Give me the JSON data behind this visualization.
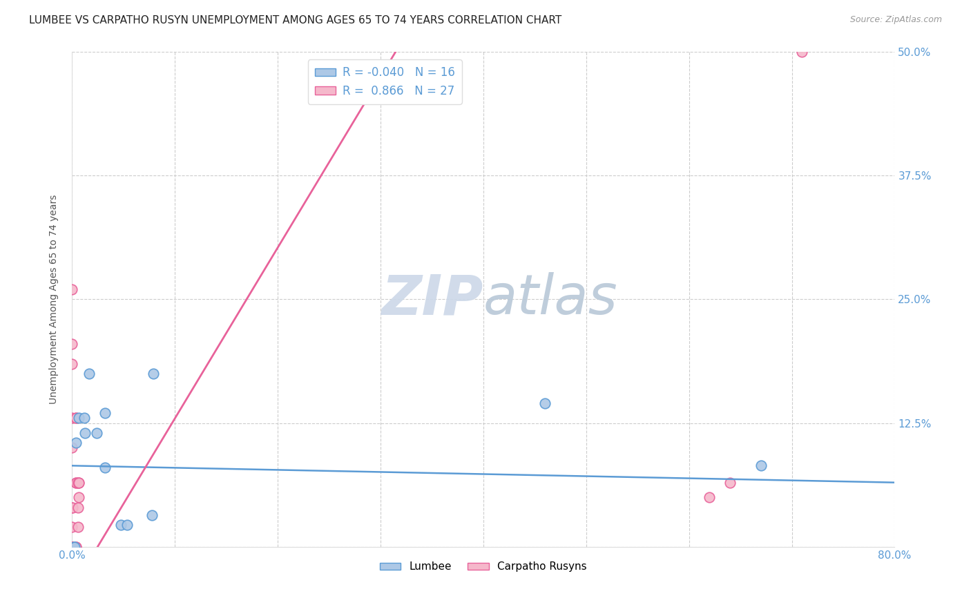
{
  "title": "LUMBEE VS CARPATHO RUSYN UNEMPLOYMENT AMONG AGES 65 TO 74 YEARS CORRELATION CHART",
  "source": "Source: ZipAtlas.com",
  "ylabel": "Unemployment Among Ages 65 to 74 years",
  "xlim": [
    0,
    0.8
  ],
  "ylim": [
    0,
    0.5
  ],
  "xticks": [
    0.0,
    0.1,
    0.2,
    0.3,
    0.4,
    0.5,
    0.6,
    0.7,
    0.8
  ],
  "yticks": [
    0.0,
    0.125,
    0.25,
    0.375,
    0.5
  ],
  "yticklabels_right": [
    "",
    "12.5%",
    "25.0%",
    "37.5%",
    "50.0%"
  ],
  "lumbee_x": [
    0.002,
    0.003,
    0.004,
    0.007,
    0.012,
    0.013,
    0.017,
    0.024,
    0.032,
    0.032,
    0.048,
    0.054,
    0.078,
    0.079,
    0.46,
    0.67
  ],
  "lumbee_y": [
    0.0,
    0.0,
    0.105,
    0.13,
    0.13,
    0.115,
    0.175,
    0.115,
    0.135,
    0.08,
    0.022,
    0.022,
    0.032,
    0.175,
    0.145,
    0.082
  ],
  "carpatho_x": [
    0.0,
    0.0,
    0.0,
    0.0,
    0.0,
    0.0,
    0.0,
    0.0,
    0.0,
    0.0,
    0.001,
    0.001,
    0.004,
    0.004,
    0.004,
    0.004,
    0.004,
    0.004,
    0.006,
    0.006,
    0.006,
    0.007,
    0.007,
    0.007,
    0.62,
    0.64,
    0.71
  ],
  "carpatho_y": [
    0.0,
    0.0,
    0.0,
    0.02,
    0.04,
    0.1,
    0.13,
    0.185,
    0.205,
    0.26,
    0.0,
    0.04,
    0.0,
    0.0,
    0.065,
    0.065,
    0.13,
    0.13,
    0.02,
    0.04,
    0.065,
    0.05,
    0.065,
    0.065,
    0.05,
    0.065,
    0.5
  ],
  "lumbee_r": -0.04,
  "lumbee_n": 16,
  "carpatho_r": 0.866,
  "carpatho_n": 27,
  "lumbee_color": "#adc8e6",
  "carpatho_color": "#f5b8cb",
  "lumbee_line_color": "#5b9bd5",
  "carpatho_line_color": "#e8629a",
  "lumbee_trend_start_x": 0.0,
  "lumbee_trend_start_y": 0.082,
  "lumbee_trend_end_x": 0.8,
  "lumbee_trend_end_y": 0.065,
  "carpatho_trend_start_x": 0.025,
  "carpatho_trend_start_y": 0.0,
  "carpatho_trend_end_x": 0.315,
  "carpatho_trend_end_y": 0.5,
  "watermark_zip": "ZIP",
  "watermark_atlas": "atlas",
  "watermark_color_zip": "#c8d8e8",
  "watermark_color_atlas": "#b8c8d8",
  "grid_color": "#cccccc",
  "title_fontsize": 11,
  "axis_label_fontsize": 10,
  "tick_fontsize": 11,
  "legend_fontsize": 12,
  "marker_size": 110,
  "background_color": "#ffffff",
  "tick_color": "#5b9bd5"
}
